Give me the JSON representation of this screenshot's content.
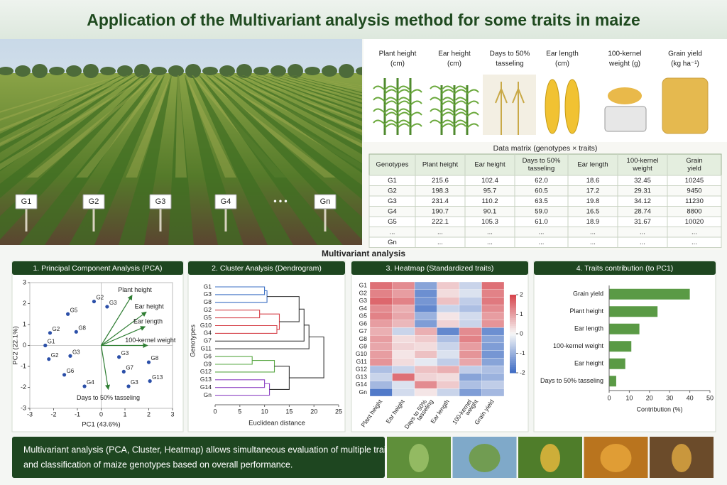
{
  "title": "Application of the Multivariant analysis method for some traits in maize",
  "field_labels": [
    "G1",
    "G2",
    "G3",
    "G4",
    "• • •",
    "Gn"
  ],
  "traits": [
    [
      "Plant height",
      "(cm)"
    ],
    [
      "Ear height",
      "(cm)"
    ],
    [
      "Days to 50%",
      "tasseling"
    ],
    [
      "Ear length",
      "(cm)"
    ],
    [
      "100-kernel",
      "weight (g)"
    ],
    [
      "Grain yield",
      "(kg ha⁻¹)"
    ]
  ],
  "table": {
    "title": "Data matrix (genotypes × traits)",
    "header": [
      [
        "Genotypes"
      ],
      [
        "Plant height"
      ],
      [
        "Ear height"
      ],
      [
        "Days to 50%",
        "tasseling"
      ],
      [
        "Ear length"
      ],
      [
        "100-kernel",
        "weight"
      ],
      [
        "Grain",
        "yield"
      ]
    ],
    "rows": [
      [
        "G1",
        "215.6",
        "102.4",
        "62.0",
        "18.6",
        "32.45",
        "10245"
      ],
      [
        "G2",
        "198.3",
        "95.7",
        "60.5",
        "17.2",
        "29.31",
        "9450"
      ],
      [
        "G3",
        "231.4",
        "110.2",
        "63.5",
        "19.8",
        "34.12",
        "11230"
      ],
      [
        "G4",
        "190.7",
        "90.1",
        "59.0",
        "16.5",
        "28.74",
        "8800"
      ],
      [
        "G5",
        "222.1",
        "105.3",
        "61.0",
        "18.9",
        "31.67",
        "10020"
      ],
      [
        "...",
        "...",
        "...",
        "...",
        "...",
        "...",
        "..."
      ],
      [
        "Gn",
        "...",
        "...",
        "...",
        "...",
        "...",
        "..."
      ]
    ]
  },
  "section_title": "Multivariant analysis",
  "chart_data": [
    {
      "type": "scatter",
      "title": "1. Principal Component Analysis (PCA)",
      "xlabel": "PC1 (43.6%)",
      "ylabel": "PC2 (22.1%)",
      "xlim": [
        -3,
        3
      ],
      "ylim": [
        -3,
        3
      ],
      "xticks": [
        -3,
        -2,
        -1,
        0,
        1,
        2,
        3
      ],
      "yticks": [
        -3,
        -2,
        -1,
        0,
        1,
        2,
        3
      ],
      "color": "#2b4fa8",
      "points": [
        {
          "label": "G2",
          "x": -0.3,
          "y": 2.1
        },
        {
          "label": "G3",
          "x": 0.25,
          "y": 1.85
        },
        {
          "label": "G5",
          "x": -1.4,
          "y": 1.5
        },
        {
          "label": "G2",
          "x": -2.15,
          "y": 0.6
        },
        {
          "label": "G8",
          "x": -1.05,
          "y": 0.65
        },
        {
          "label": "G1",
          "x": -2.35,
          "y": 0.0
        },
        {
          "label": "G2",
          "x": -2.2,
          "y": -0.65
        },
        {
          "label": "G3",
          "x": -1.3,
          "y": -0.5
        },
        {
          "label": "G6",
          "x": -1.55,
          "y": -1.4
        },
        {
          "label": "G4",
          "x": -0.7,
          "y": -1.95
        },
        {
          "label": "G3",
          "x": 0.75,
          "y": -0.55
        },
        {
          "label": "G7",
          "x": 0.95,
          "y": -1.25
        },
        {
          "label": "G8",
          "x": 2.0,
          "y": -0.8
        },
        {
          "label": "G3",
          "x": 1.15,
          "y": -1.95
        },
        {
          "label": "G13",
          "x": 2.05,
          "y": -1.7
        }
      ],
      "loadings": [
        {
          "name": "Plant height",
          "x": 1.3,
          "y": 2.4
        },
        {
          "name": "Ear height",
          "x": 1.9,
          "y": 1.6
        },
        {
          "name": "Ear length",
          "x": 1.85,
          "y": 0.9
        },
        {
          "name": "100-kernel weight",
          "x": 1.95,
          "y": 0.0
        },
        {
          "name": "Days to 50% tasseling",
          "x": 0.3,
          "y": -2.1
        }
      ],
      "loading_color": "#2e7d32"
    },
    {
      "type": "dendrogram",
      "title": "2. Cluster Analysis (Dendrogram)",
      "xlabel": "Euclidean distance",
      "ylabel": "Genotypes",
      "xlim": [
        0,
        25
      ],
      "xticks": [
        0,
        5,
        10,
        15,
        20,
        25
      ],
      "leaves": [
        "G1",
        "G3",
        "G8",
        "G2",
        "G5",
        "G10",
        "G4",
        "G7",
        "G11",
        "G6",
        "G9",
        "G12",
        "G13",
        "G14",
        "Gn"
      ],
      "links": [
        [
          0,
          1,
          10,
          "#3b6fc4"
        ],
        [
          15,
          2,
          10.5,
          "#3b6fc4"
        ],
        [
          3,
          4,
          9,
          "#d6434b"
        ],
        [
          5,
          6,
          12.5,
          "#d6434b"
        ],
        [
          17,
          18,
          13,
          "#d6434b"
        ],
        [
          16,
          19,
          17,
          "#333333"
        ],
        [
          20,
          7,
          18,
          "#333333"
        ],
        [
          21,
          8,
          19,
          "#333333"
        ],
        [
          9,
          10,
          7.5,
          "#5aa845"
        ],
        [
          23,
          11,
          12,
          "#5aa845"
        ],
        [
          12,
          13,
          10,
          "#8e44c4"
        ],
        [
          25,
          14,
          11,
          "#8e44c4"
        ],
        [
          24,
          26,
          15,
          "#333333"
        ],
        [
          22,
          27,
          22,
          "#333333"
        ]
      ]
    },
    {
      "type": "heatmap",
      "title": "3. Heatmap (Standardized traits)",
      "rows": [
        "G1",
        "G2",
        "G3",
        "G4",
        "G5",
        "G6",
        "G7",
        "G8",
        "G9",
        "G10",
        "G11",
        "G12",
        "G13",
        "G14",
        "Gn"
      ],
      "columns": [
        [
          "Plant height"
        ],
        [
          "Ear height"
        ],
        [
          "Days to 50%",
          "tasseling"
        ],
        [
          "Ear length"
        ],
        [
          "100-kernel",
          "weight"
        ],
        [
          "Grain yield"
        ]
      ],
      "values": [
        [
          1.5,
          1.2,
          -1.2,
          0.5,
          -0.5,
          1.5
        ],
        [
          1.3,
          1.0,
          -1.5,
          0.3,
          -0.3,
          1.3
        ],
        [
          1.6,
          1.3,
          -1.4,
          0.6,
          -0.6,
          1.4
        ],
        [
          1.2,
          0.8,
          -1.6,
          -0.5,
          -0.8,
          1.2
        ],
        [
          1.3,
          0.9,
          -1.0,
          0.2,
          -0.4,
          1.0
        ],
        [
          1.0,
          0.7,
          -1.3,
          0.4,
          -0.5,
          1.1
        ],
        [
          0.8,
          -0.5,
          0.8,
          -1.6,
          1.2,
          -1.5
        ],
        [
          1.0,
          0.3,
          0.5,
          -0.8,
          1.3,
          -1.2
        ],
        [
          0.9,
          0.4,
          0.3,
          -0.5,
          1.0,
          -1.3
        ],
        [
          1.0,
          0.2,
          0.6,
          -0.3,
          1.1,
          -1.4
        ],
        [
          1.1,
          0.3,
          -0.2,
          -0.6,
          0.9,
          -1.2
        ],
        [
          -0.8,
          -0.5,
          0.6,
          0.8,
          -0.6,
          -0.8
        ],
        [
          -0.5,
          1.5,
          0.4,
          0.3,
          -1.2,
          -1.0
        ],
        [
          -0.9,
          -0.3,
          1.2,
          0.5,
          -0.8,
          -0.6
        ],
        [
          -1.8,
          -0.4,
          0.2,
          -0.5,
          -1.3,
          -0.9
        ]
      ],
      "clim": [
        -2,
        2
      ],
      "cticks": [
        2,
        1,
        0,
        -1,
        -2
      ],
      "cmap": [
        "#3e6cc4",
        "#f7f7f7",
        "#d6434b"
      ]
    },
    {
      "type": "hbar",
      "title": "4. Traits contribution (to PC1)",
      "xlabel": "Contribution (%)",
      "categories": [
        "Grain yield",
        "Plant height",
        "Ear length",
        "100-kernel weight",
        "Ear height",
        "Days to 50% tasseling"
      ],
      "values": [
        40,
        24,
        15,
        11,
        8,
        3.5
      ],
      "xlim": [
        0,
        50
      ],
      "xticks": [
        0,
        10,
        20,
        30,
        40,
        50
      ],
      "color": "#5a9a45"
    }
  ],
  "footer_lines": [
    "Multivariant analysis (PCA, Cluster, Heatmap) allows simultaneous evaluation of multiple traits",
    "and classification of maize genotypes based on overall performance."
  ]
}
